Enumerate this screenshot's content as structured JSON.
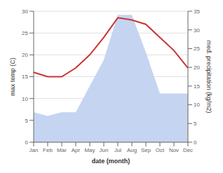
{
  "chart_data": {
    "type": "line",
    "categories": [
      "Jan",
      "Feb",
      "Mar",
      "Apr",
      "May",
      "Jun",
      "Jul",
      "Aug",
      "Sep",
      "Oct",
      "Nov",
      "Dec"
    ],
    "xlabel": "date (month)",
    "ylabel": "max temp (C)",
    "y2label": "med. precipitation (kg/m2)",
    "series": [
      {
        "type": "area",
        "axis": "y2",
        "color": "#c5d4f0",
        "values": [
          8,
          7,
          8,
          8,
          15,
          22,
          34,
          34,
          24,
          13,
          13,
          13
        ]
      },
      {
        "type": "line",
        "color": "#cc3333",
        "values": [
          16.0,
          15.0,
          15.0,
          17.0,
          20.0,
          24.0,
          28.5,
          28.0,
          27.0,
          24.0,
          21.0,
          17.0
        ]
      }
    ],
    "ylim": [
      0,
      30
    ],
    "yticks": [
      0,
      5,
      10,
      15,
      20,
      25,
      30
    ],
    "y2lim": [
      0,
      35
    ],
    "y2ticks": [
      0,
      5,
      10,
      15,
      20,
      25,
      30,
      35
    ],
    "grid": true
  }
}
